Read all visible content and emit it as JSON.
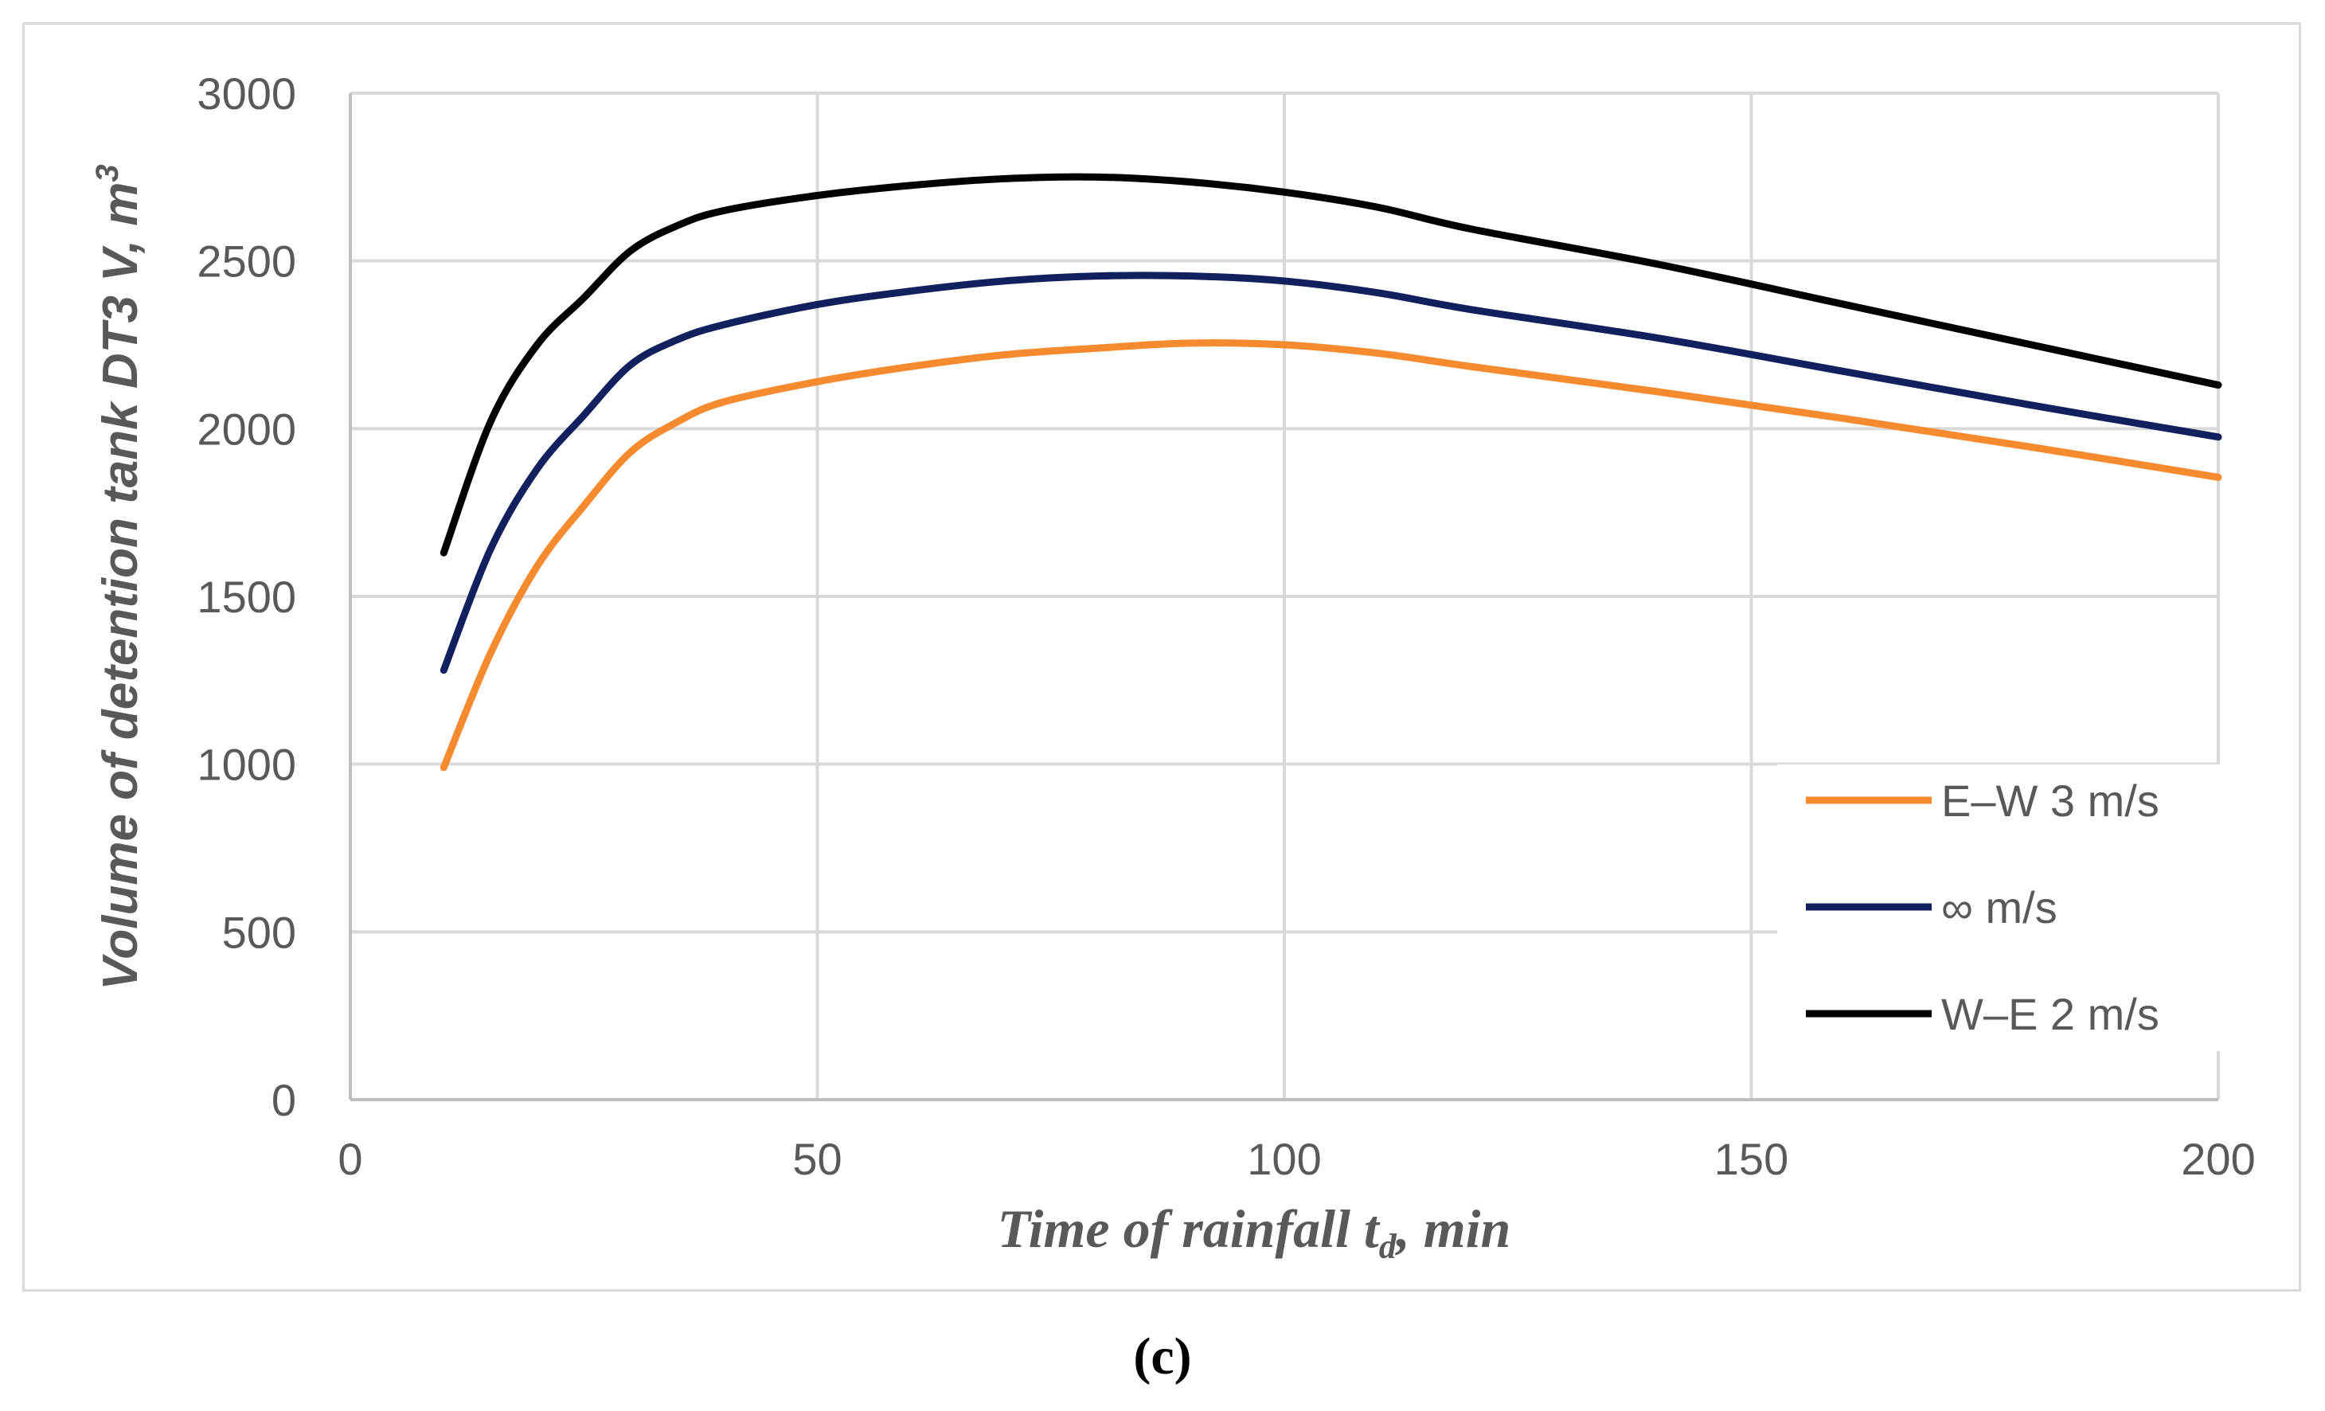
{
  "chart_data": {
    "type": "line",
    "title": "",
    "xlabel": "Time of rainfall t",
    "xlabel_sub": "d",
    "xlabel_tail": ", min",
    "ylabel": "Volume of  detention tank DT3 V, m",
    "ylabel_sup": "3",
    "xlim": [
      0,
      200
    ],
    "ylim": [
      0,
      3000
    ],
    "xticks": [
      0,
      50,
      100,
      150,
      200
    ],
    "yticks": [
      0,
      500,
      1000,
      1500,
      2000,
      2500,
      3000
    ],
    "grid": true,
    "legend_position": "right",
    "x": [
      10,
      15,
      20,
      25,
      30,
      35,
      40,
      50,
      60,
      70,
      80,
      90,
      100,
      110,
      120,
      140,
      160,
      180,
      200
    ],
    "series": [
      {
        "name": "E–W 3 m/s",
        "color": "#f58a2e",
        "values": [
          990,
          1330,
          1590,
          1770,
          1930,
          2020,
          2080,
          2140,
          2185,
          2220,
          2240,
          2255,
          2250,
          2225,
          2185,
          2110,
          2030,
          1945,
          1855
        ]
      },
      {
        "name": "∞ m/s",
        "color": "#12215e",
        "values": [
          1280,
          1640,
          1880,
          2040,
          2190,
          2265,
          2310,
          2370,
          2410,
          2440,
          2455,
          2455,
          2440,
          2405,
          2355,
          2270,
          2170,
          2070,
          1975
        ]
      },
      {
        "name": "W–E 2 m/s",
        "color": "#000000",
        "values": [
          1630,
          2020,
          2250,
          2390,
          2530,
          2605,
          2650,
          2695,
          2725,
          2745,
          2750,
          2735,
          2705,
          2660,
          2595,
          2490,
          2370,
          2250,
          2130
        ]
      }
    ]
  },
  "caption": "(c)"
}
